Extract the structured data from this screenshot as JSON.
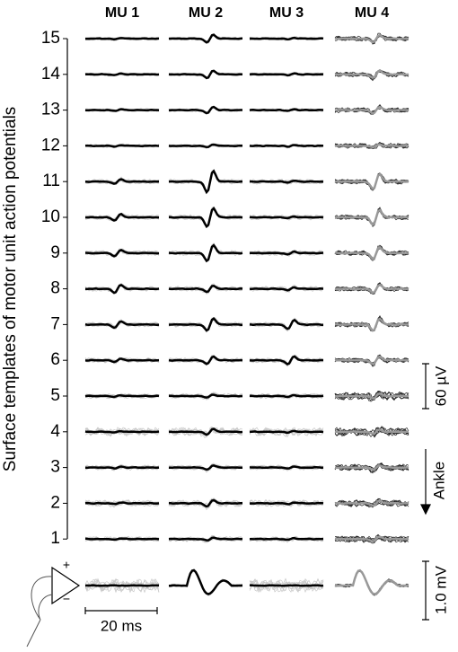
{
  "header": {
    "columns": [
      "MU 1",
      "MU 2",
      "MU 3",
      "MU 4"
    ]
  },
  "rows": [
    "15",
    "14",
    "13",
    "12",
    "11",
    "10",
    "9",
    "8",
    "7",
    "6",
    "5",
    "4",
    "3",
    "2",
    "1"
  ],
  "axis_label": "Surface templates of motor unit action potentials",
  "scale": {
    "amplitude": "60 µV",
    "direction": "Ankle",
    "bipolar_amplitude": "1.0 mV",
    "time": "20 ms"
  },
  "amplifier": {
    "plus": "+",
    "minus": "−"
  }
}
